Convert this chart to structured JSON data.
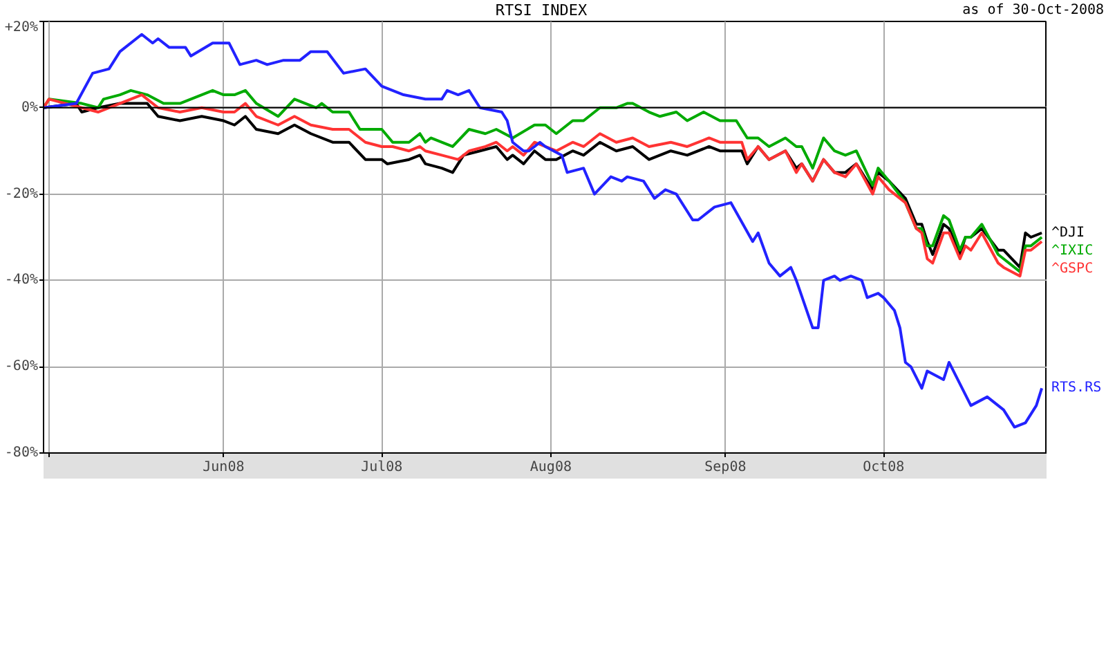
{
  "chart_data": {
    "type": "line",
    "title": "RTSI INDEX",
    "annotations": [
      "as of 30-Oct-2008"
    ],
    "xlim": [
      "2008-04-30",
      "2008-10-31"
    ],
    "xticks": [
      {
        "value": "2008-05-01",
        "label": null
      },
      {
        "value": "2008-06-02",
        "label": "Jun08"
      },
      {
        "value": "2008-07-01",
        "label": "Jul08"
      },
      {
        "value": "2008-08-01",
        "label": "Aug08"
      },
      {
        "value": "2008-09-02",
        "label": "Sep08"
      },
      {
        "value": "2008-10-01",
        "label": "Oct08"
      }
    ],
    "ylim": [
      -80,
      20
    ],
    "yticks": [
      {
        "value": 20,
        "label": "+20%"
      },
      {
        "value": 0,
        "label": "0%"
      },
      {
        "value": -20,
        "label": "-20%"
      },
      {
        "value": -40,
        "label": "-40%"
      },
      {
        "value": -60,
        "label": "-60%"
      },
      {
        "value": -80,
        "label": "-80%"
      }
    ],
    "grid": true,
    "ref_lines": [
      {
        "axis": "y",
        "value": 0,
        "color": "#000000"
      }
    ],
    "series": [
      {
        "name": "^DJI",
        "color": "#000000",
        "x": [
          "2008-04-30",
          "2008-05-06",
          "2008-05-07",
          "2008-05-10",
          "2008-05-14",
          "2008-05-17",
          "2008-05-19",
          "2008-05-21",
          "2008-05-25",
          "2008-05-29",
          "2008-06-02",
          "2008-06-04",
          "2008-06-06",
          "2008-06-08",
          "2008-06-12",
          "2008-06-15",
          "2008-06-18",
          "2008-06-22",
          "2008-06-25",
          "2008-06-28",
          "2008-07-01",
          "2008-07-02",
          "2008-07-06",
          "2008-07-08",
          "2008-07-09",
          "2008-07-12",
          "2008-07-14",
          "2008-07-16",
          "2008-07-19",
          "2008-07-22",
          "2008-07-24",
          "2008-07-25",
          "2008-07-27",
          "2008-07-29",
          "2008-07-31",
          "2008-08-02",
          "2008-08-05",
          "2008-08-07",
          "2008-08-10",
          "2008-08-13",
          "2008-08-16",
          "2008-08-19",
          "2008-08-23",
          "2008-08-26",
          "2008-08-30",
          "2008-09-01",
          "2008-09-05",
          "2008-09-06",
          "2008-09-08",
          "2008-09-10",
          "2008-09-13",
          "2008-09-15",
          "2008-09-16",
          "2008-09-18",
          "2008-09-20",
          "2008-09-22",
          "2008-09-24",
          "2008-09-26",
          "2008-09-28",
          "2008-09-29",
          "2008-09-30",
          "2008-10-02",
          "2008-10-05",
          "2008-10-07",
          "2008-10-08",
          "2008-10-09",
          "2008-10-10",
          "2008-10-12",
          "2008-10-13",
          "2008-10-15",
          "2008-10-16",
          "2008-10-17",
          "2008-10-19",
          "2008-10-22",
          "2008-10-23",
          "2008-10-26",
          "2008-10-27",
          "2008-10-28",
          "2008-10-30"
        ],
        "values": [
          0,
          1,
          -1,
          0,
          1,
          1,
          1,
          -2,
          -3,
          -2,
          -3,
          -4,
          -2,
          -5,
          -6,
          -4,
          -6,
          -8,
          -8,
          -12,
          -12,
          -13,
          -12,
          -11,
          -13,
          -14,
          -15,
          -11,
          -10,
          -9,
          -12,
          -11,
          -13,
          -10,
          -12,
          -12,
          -10,
          -11,
          -8,
          -10,
          -9,
          -12,
          -10,
          -11,
          -9,
          -10,
          -10,
          -13,
          -9,
          -12,
          -10,
          -14,
          -13,
          -17,
          -12,
          -15,
          -15,
          -13,
          -17,
          -19,
          -15,
          -17,
          -21,
          -27,
          -27,
          -31,
          -34,
          -27,
          -28,
          -34,
          -30,
          -30,
          -28,
          -33,
          -33,
          -37,
          -29,
          -30,
          -29
        ]
      },
      {
        "name": "^IXIC",
        "color": "#00aa00",
        "x": [
          "2008-04-30",
          "2008-05-01",
          "2008-05-07",
          "2008-05-10",
          "2008-05-11",
          "2008-05-14",
          "2008-05-16",
          "2008-05-19",
          "2008-05-22",
          "2008-05-25",
          "2008-05-27",
          "2008-05-31",
          "2008-06-02",
          "2008-06-04",
          "2008-06-06",
          "2008-06-08",
          "2008-06-12",
          "2008-06-15",
          "2008-06-19",
          "2008-06-20",
          "2008-06-22",
          "2008-06-25",
          "2008-06-27",
          "2008-07-01",
          "2008-07-03",
          "2008-07-06",
          "2008-07-08",
          "2008-07-09",
          "2008-07-10",
          "2008-07-14",
          "2008-07-17",
          "2008-07-20",
          "2008-07-22",
          "2008-07-25",
          "2008-07-29",
          "2008-07-31",
          "2008-08-02",
          "2008-08-05",
          "2008-08-07",
          "2008-08-10",
          "2008-08-13",
          "2008-08-15",
          "2008-08-16",
          "2008-08-19",
          "2008-08-21",
          "2008-08-24",
          "2008-08-26",
          "2008-08-29",
          "2008-09-01",
          "2008-09-04",
          "2008-09-06",
          "2008-09-08",
          "2008-09-10",
          "2008-09-13",
          "2008-09-15",
          "2008-09-16",
          "2008-09-18",
          "2008-09-20",
          "2008-09-22",
          "2008-09-24",
          "2008-09-26",
          "2008-09-29",
          "2008-09-30",
          "2008-10-02",
          "2008-10-05",
          "2008-10-07",
          "2008-10-08",
          "2008-10-09",
          "2008-10-10",
          "2008-10-12",
          "2008-10-13",
          "2008-10-15",
          "2008-10-16",
          "2008-10-17",
          "2008-10-19",
          "2008-10-22",
          "2008-10-23",
          "2008-10-26",
          "2008-10-27",
          "2008-10-28",
          "2008-10-30"
        ],
        "values": [
          0,
          2,
          1,
          0,
          2,
          3,
          4,
          3,
          1,
          1,
          2,
          4,
          3,
          3,
          4,
          1,
          -2,
          2,
          0,
          1,
          -1,
          -1,
          -5,
          -5,
          -8,
          -8,
          -6,
          -8,
          -7,
          -9,
          -5,
          -6,
          -5,
          -7,
          -4,
          -4,
          -6,
          -3,
          -3,
          0,
          0,
          1,
          1,
          -1,
          -2,
          -1,
          -3,
          -1,
          -3,
          -3,
          -7,
          -7,
          -9,
          -7,
          -9,
          -9,
          -14,
          -7,
          -10,
          -11,
          -10,
          -18,
          -14,
          -17,
          -22,
          -28,
          -28,
          -32,
          -32,
          -25,
          -26,
          -33,
          -30,
          -30,
          -27,
          -34,
          -35,
          -38,
          -32,
          -32,
          -30
        ]
      },
      {
        "name": "^GSPC",
        "color": "#ff3333",
        "x": [
          "2008-04-30",
          "2008-05-01",
          "2008-05-07",
          "2008-05-10",
          "2008-05-14",
          "2008-05-18",
          "2008-05-19",
          "2008-05-21",
          "2008-05-25",
          "2008-05-29",
          "2008-06-02",
          "2008-06-04",
          "2008-06-06",
          "2008-06-08",
          "2008-06-12",
          "2008-06-15",
          "2008-06-18",
          "2008-06-22",
          "2008-06-25",
          "2008-06-28",
          "2008-07-01",
          "2008-07-03",
          "2008-07-06",
          "2008-07-08",
          "2008-07-09",
          "2008-07-12",
          "2008-07-15",
          "2008-07-17",
          "2008-07-20",
          "2008-07-22",
          "2008-07-24",
          "2008-07-25",
          "2008-07-27",
          "2008-07-29",
          "2008-07-31",
          "2008-08-02",
          "2008-08-05",
          "2008-08-07",
          "2008-08-10",
          "2008-08-13",
          "2008-08-16",
          "2008-08-19",
          "2008-08-23",
          "2008-08-26",
          "2008-08-30",
          "2008-09-01",
          "2008-09-05",
          "2008-09-06",
          "2008-09-08",
          "2008-09-10",
          "2008-09-13",
          "2008-09-15",
          "2008-09-16",
          "2008-09-18",
          "2008-09-20",
          "2008-09-22",
          "2008-09-24",
          "2008-09-26",
          "2008-09-29",
          "2008-09-30",
          "2008-10-02",
          "2008-10-05",
          "2008-10-07",
          "2008-10-08",
          "2008-10-09",
          "2008-10-10",
          "2008-10-12",
          "2008-10-13",
          "2008-10-15",
          "2008-10-16",
          "2008-10-17",
          "2008-10-19",
          "2008-10-22",
          "2008-10-23",
          "2008-10-26",
          "2008-10-27",
          "2008-10-28",
          "2008-10-30"
        ],
        "values": [
          0,
          2,
          0,
          -1,
          1,
          3,
          2,
          0,
          -1,
          0,
          -1,
          -1,
          1,
          -2,
          -4,
          -2,
          -4,
          -5,
          -5,
          -8,
          -9,
          -9,
          -10,
          -9,
          -10,
          -11,
          -12,
          -10,
          -9,
          -8,
          -10,
          -9,
          -11,
          -8,
          -9,
          -10,
          -8,
          -9,
          -6,
          -8,
          -7,
          -9,
          -8,
          -9,
          -7,
          -8,
          -8,
          -12,
          -9,
          -12,
          -10,
          -15,
          -13,
          -17,
          -12,
          -15,
          -16,
          -13,
          -20,
          -16,
          -19,
          -22,
          -28,
          -29,
          -35,
          -36,
          -29,
          -29,
          -35,
          -32,
          -33,
          -29,
          -36,
          -37,
          -39,
          -33,
          -33,
          -31
        ]
      },
      {
        "name": "RTS.RS",
        "color": "#2222ff",
        "x": [
          "2008-04-30",
          "2008-05-06",
          "2008-05-09",
          "2008-05-12",
          "2008-05-14",
          "2008-05-18",
          "2008-05-20",
          "2008-05-21",
          "2008-05-23",
          "2008-05-26",
          "2008-05-27",
          "2008-05-31",
          "2008-06-03",
          "2008-06-05",
          "2008-06-08",
          "2008-06-10",
          "2008-06-13",
          "2008-06-16",
          "2008-06-18",
          "2008-06-21",
          "2008-06-24",
          "2008-06-28",
          "2008-07-01",
          "2008-07-05",
          "2008-07-09",
          "2008-07-12",
          "2008-07-13",
          "2008-07-15",
          "2008-07-17",
          "2008-07-19",
          "2008-07-23",
          "2008-07-24",
          "2008-07-25",
          "2008-07-27",
          "2008-07-28",
          "2008-07-30",
          "2008-07-31",
          "2008-08-03",
          "2008-08-04",
          "2008-08-07",
          "2008-08-09",
          "2008-08-12",
          "2008-08-14",
          "2008-08-15",
          "2008-08-18",
          "2008-08-20",
          "2008-08-22",
          "2008-08-24",
          "2008-08-27",
          "2008-08-28",
          "2008-08-31",
          "2008-09-03",
          "2008-09-07",
          "2008-09-08",
          "2008-09-10",
          "2008-09-12",
          "2008-09-14",
          "2008-09-15",
          "2008-09-18",
          "2008-09-19",
          "2008-09-20",
          "2008-09-22",
          "2008-09-23",
          "2008-09-25",
          "2008-09-27",
          "2008-09-28",
          "2008-09-30",
          "2008-10-01",
          "2008-10-03",
          "2008-10-04",
          "2008-10-05",
          "2008-10-06",
          "2008-10-08",
          "2008-10-09",
          "2008-10-12",
          "2008-10-13",
          "2008-10-15",
          "2008-10-17",
          "2008-10-20",
          "2008-10-23",
          "2008-10-25",
          "2008-10-27",
          "2008-10-29",
          "2008-10-30"
        ],
        "values": [
          0,
          1,
          8,
          9,
          13,
          17,
          15,
          16,
          14,
          14,
          12,
          15,
          15,
          10,
          11,
          10,
          11,
          11,
          13,
          13,
          8,
          9,
          5,
          3,
          2,
          2,
          4,
          3,
          4,
          0,
          -1,
          -3,
          -8,
          -10,
          -10,
          -8,
          -9,
          -11,
          -15,
          -14,
          -20,
          -16,
          -17,
          -16,
          -17,
          -21,
          -19,
          -20,
          -26,
          -26,
          -23,
          -22,
          -31,
          -29,
          -36,
          -39,
          -37,
          -40,
          -51,
          -51,
          -40,
          -39,
          -40,
          -39,
          -40,
          -44,
          -43,
          -44,
          -47,
          -51,
          -59,
          -60,
          -65,
          -61,
          -63,
          -59,
          -64,
          -69,
          -67,
          -70,
          -74,
          -73,
          -69,
          -65
        ]
      }
    ]
  }
}
